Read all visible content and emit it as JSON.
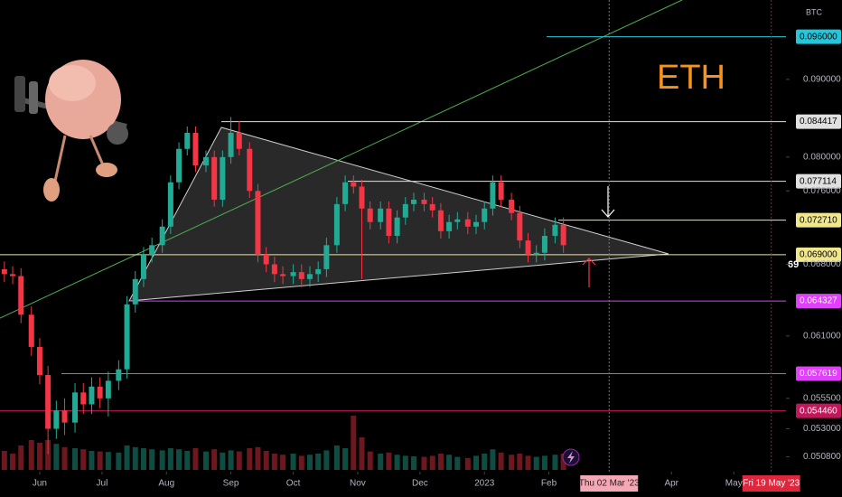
{
  "chart_data": {
    "type": "candlestick",
    "title": "ETH",
    "axis_unit": "BTC",
    "cursor_label": "69",
    "log_scale": true,
    "grid": false,
    "up_color": "#22ab94",
    "down_color": "#f23645",
    "ylim": [
      0.0498,
      0.1015
    ],
    "yticks": [
      {
        "value": 0.09,
        "label": "0.090000"
      },
      {
        "value": 0.08,
        "label": "0.080000"
      },
      {
        "value": 0.076,
        "label": "0.076000"
      },
      {
        "value": 0.068,
        "label": "0.068000"
      },
      {
        "value": 0.061,
        "label": "0.061000"
      },
      {
        "value": 0.0555,
        "label": "0.055500"
      },
      {
        "value": 0.053,
        "label": "0.053000"
      },
      {
        "value": 0.0508,
        "label": "0.050800"
      }
    ],
    "xlim": [
      -19.1,
      359.1
    ],
    "xticks": [
      {
        "value": 0,
        "label": "Jun"
      },
      {
        "value": 30,
        "label": "Jul"
      },
      {
        "value": 61,
        "label": "Aug"
      },
      {
        "value": 92,
        "label": "Sep"
      },
      {
        "value": 122,
        "label": "Oct"
      },
      {
        "value": 153,
        "label": "Nov"
      },
      {
        "value": 183,
        "label": "Dec"
      },
      {
        "value": 214,
        "label": "2023"
      },
      {
        "value": 245,
        "label": "Feb"
      },
      {
        "value": 304,
        "label": "Apr"
      },
      {
        "value": 334,
        "label": "May"
      }
    ],
    "crosshairs": [
      {
        "value": 274,
        "label": "Thu 02 Mar '23",
        "color": "#f4a7b4",
        "text_color": "#222222"
      },
      {
        "value": 352,
        "label": "Fri 19 May '23",
        "color": "#e0263c",
        "text_color": "#ffffff"
      }
    ],
    "levels": [
      {
        "value": 0.096,
        "label": "0.096000",
        "color": "#26c6da",
        "text_color": "#000000"
      },
      {
        "value": 0.084417,
        "label": "0.084417",
        "color": "#e0e0e0",
        "text_color": "#000000"
      },
      {
        "value": 0.077114,
        "label": "0.077114",
        "color": "#e0e0e0",
        "text_color": "#000000"
      },
      {
        "value": 0.07271,
        "label": "0.072710",
        "color": "#f0e68c",
        "text_color": "#000000"
      },
      {
        "value": 0.069,
        "label": "0.069000",
        "color": "#f0e68c",
        "text_color": "#000000"
      },
      {
        "value": 0.064327,
        "label": "0.064327",
        "color": "#e040fb",
        "text_color": "#ffffff"
      },
      {
        "value": 0.057619,
        "label": "0.057619",
        "color": "#e040fb",
        "text_color": "#ffffff"
      },
      {
        "value": 0.05446,
        "label": "0.054460",
        "color": "#c2185b",
        "text_color": "#ffffff"
      }
    ],
    "x": [
      -17,
      -13,
      -9,
      -4,
      0,
      4,
      8,
      12,
      17,
      21,
      25,
      29,
      33,
      38,
      42,
      46,
      50,
      54,
      59,
      63,
      67,
      71,
      75,
      80,
      84,
      88,
      92,
      96,
      101,
      105,
      109,
      113,
      117,
      122,
      126,
      130,
      134,
      138,
      143,
      147,
      151,
      155,
      159,
      164,
      168,
      172,
      176,
      180,
      185,
      189,
      193,
      197,
      201,
      206,
      210,
      214,
      218,
      222,
      227,
      231,
      235,
      239,
      243,
      248,
      252
    ],
    "open": [
      0.0675,
      0.067,
      0.0668,
      0.063,
      0.06,
      0.0575,
      0.053,
      0.0545,
      0.0535,
      0.056,
      0.055,
      0.0565,
      0.0555,
      0.057,
      0.058,
      0.064,
      0.0665,
      0.069,
      0.07,
      0.072,
      0.077,
      0.081,
      0.083,
      0.079,
      0.08,
      0.075,
      0.08,
      0.083,
      0.081,
      0.076,
      0.069,
      0.068,
      0.067,
      0.0668,
      0.0672,
      0.0665,
      0.067,
      0.0675,
      0.07,
      0.0745,
      0.077,
      0.0765,
      0.074,
      0.0725,
      0.074,
      0.071,
      0.073,
      0.0745,
      0.075,
      0.0745,
      0.0738,
      0.0715,
      0.0725,
      0.0728,
      0.072,
      0.0725,
      0.074,
      0.077,
      0.075,
      0.0735,
      0.0705,
      0.069,
      0.0692,
      0.071,
      0.0722
    ],
    "high": [
      0.0683,
      0.0678,
      0.0676,
      0.0638,
      0.0608,
      0.0583,
      0.0553,
      0.0555,
      0.0568,
      0.0568,
      0.0573,
      0.0573,
      0.0578,
      0.0588,
      0.0648,
      0.0673,
      0.0698,
      0.0708,
      0.0728,
      0.0778,
      0.0818,
      0.0838,
      0.0838,
      0.0808,
      0.0808,
      0.0808,
      0.085,
      0.0845,
      0.0818,
      0.0768,
      0.0698,
      0.0688,
      0.0678,
      0.068,
      0.068,
      0.0678,
      0.0683,
      0.0708,
      0.0753,
      0.0778,
      0.0778,
      0.0773,
      0.0748,
      0.0748,
      0.0748,
      0.0738,
      0.0753,
      0.0758,
      0.0758,
      0.0753,
      0.0746,
      0.0733,
      0.0736,
      0.0736,
      0.0733,
      0.0748,
      0.0778,
      0.0778,
      0.0758,
      0.0743,
      0.0713,
      0.07,
      0.0718,
      0.073,
      0.073
    ],
    "low": [
      0.0662,
      0.066,
      0.0622,
      0.0592,
      0.0567,
      0.051,
      0.0522,
      0.0525,
      0.0527,
      0.0542,
      0.0542,
      0.0547,
      0.054,
      0.0562,
      0.0572,
      0.0632,
      0.0657,
      0.0682,
      0.0692,
      0.0712,
      0.0762,
      0.0802,
      0.0782,
      0.0782,
      0.0742,
      0.0742,
      0.0792,
      0.0802,
      0.0752,
      0.0682,
      0.0672,
      0.0662,
      0.066,
      0.066,
      0.0657,
      0.0657,
      0.0662,
      0.0667,
      0.0692,
      0.0737,
      0.0757,
      0.0665,
      0.0717,
      0.0717,
      0.0702,
      0.0702,
      0.0722,
      0.0737,
      0.0737,
      0.073,
      0.0707,
      0.0707,
      0.0717,
      0.0712,
      0.0712,
      0.0717,
      0.0732,
      0.0742,
      0.0727,
      0.0697,
      0.0682,
      0.0682,
      0.0684,
      0.0702,
      0.0692
    ],
    "close": [
      0.067,
      0.0668,
      0.063,
      0.06,
      0.0575,
      0.053,
      0.0545,
      0.0535,
      0.056,
      0.055,
      0.0565,
      0.0555,
      0.057,
      0.058,
      0.064,
      0.0665,
      0.069,
      0.07,
      0.072,
      0.077,
      0.081,
      0.083,
      0.079,
      0.08,
      0.075,
      0.08,
      0.083,
      0.081,
      0.076,
      0.069,
      0.068,
      0.067,
      0.0668,
      0.0672,
      0.0665,
      0.067,
      0.0675,
      0.07,
      0.0745,
      0.077,
      0.0765,
      0.074,
      0.0725,
      0.074,
      0.071,
      0.073,
      0.0745,
      0.075,
      0.0745,
      0.0738,
      0.0715,
      0.0725,
      0.0728,
      0.072,
      0.0725,
      0.074,
      0.077,
      0.075,
      0.0735,
      0.0705,
      0.069,
      0.0692,
      0.071,
      0.0722,
      0.07
    ],
    "vlim": [
      0,
      100
    ],
    "volume": [
      35,
      30,
      45,
      55,
      50,
      55,
      48,
      42,
      40,
      38,
      35,
      34,
      33,
      32,
      45,
      42,
      40,
      38,
      36,
      40,
      38,
      35,
      40,
      34,
      38,
      32,
      36,
      34,
      40,
      42,
      35,
      30,
      28,
      30,
      26,
      28,
      30,
      36,
      45,
      40,
      100,
      60,
      34,
      30,
      32,
      28,
      26,
      25,
      24,
      26,
      30,
      28,
      24,
      22,
      26,
      30,
      38,
      32,
      28,
      30,
      26,
      24,
      26,
      28,
      30
    ]
  }
}
